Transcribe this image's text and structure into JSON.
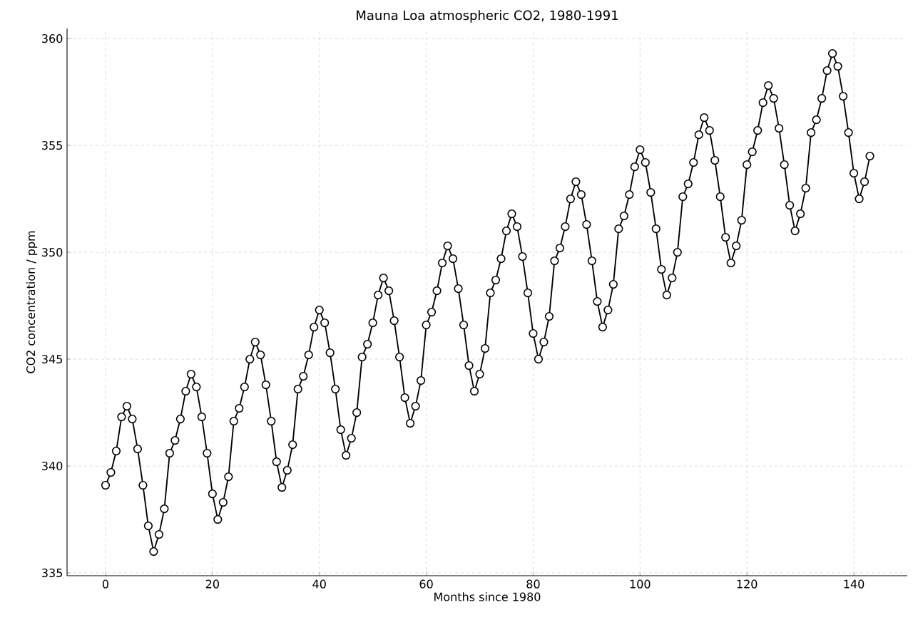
{
  "chart_data": {
    "type": "line",
    "title": "Mauna Loa atmospheric CO2, 1980-1991",
    "xlabel": "Months since 1980",
    "ylabel": "CO2 concentration / ppm",
    "x": [
      0,
      1,
      2,
      3,
      4,
      5,
      6,
      7,
      8,
      9,
      10,
      11,
      12,
      13,
      14,
      15,
      16,
      17,
      18,
      19,
      20,
      21,
      22,
      23,
      24,
      25,
      26,
      27,
      28,
      29,
      30,
      31,
      32,
      33,
      34,
      35,
      36,
      37,
      38,
      39,
      40,
      41,
      42,
      43,
      44,
      45,
      46,
      47,
      48,
      49,
      50,
      51,
      52,
      53,
      54,
      55,
      56,
      57,
      58,
      59,
      60,
      61,
      62,
      63,
      64,
      65,
      66,
      67,
      68,
      69,
      70,
      71,
      72,
      73,
      74,
      75,
      76,
      77,
      78,
      79,
      80,
      81,
      82,
      83,
      84,
      85,
      86,
      87,
      88,
      89,
      90,
      91,
      92,
      93,
      94,
      95,
      96,
      97,
      98,
      99,
      100,
      101,
      102,
      103,
      104,
      105,
      106,
      107,
      108,
      109,
      110,
      111,
      112,
      113,
      114,
      115,
      116,
      117,
      118,
      119,
      120,
      121,
      122,
      123,
      124,
      125,
      126,
      127,
      128,
      129,
      130,
      131,
      132,
      133,
      134,
      135,
      136,
      137,
      138,
      139,
      140,
      141,
      142,
      143
    ],
    "series": [
      {
        "color": "#000000",
        "values": [
          339.1,
          339.7,
          340.7,
          342.3,
          342.8,
          342.2,
          340.8,
          339.1,
          337.2,
          336.0,
          336.8,
          338.0,
          340.6,
          341.2,
          342.2,
          343.5,
          344.3,
          343.7,
          342.3,
          340.6,
          338.7,
          337.5,
          338.3,
          339.5,
          342.1,
          342.7,
          343.7,
          345.0,
          345.8,
          345.2,
          343.8,
          342.1,
          340.2,
          339.0,
          339.8,
          341.0,
          343.6,
          344.2,
          345.2,
          346.5,
          347.3,
          346.7,
          345.3,
          343.6,
          341.7,
          340.5,
          341.3,
          342.5,
          345.1,
          345.7,
          346.7,
          348.0,
          348.8,
          348.2,
          346.8,
          345.1,
          343.2,
          342.0,
          342.8,
          344.0,
          346.6,
          347.2,
          348.2,
          349.5,
          350.3,
          349.7,
          348.3,
          346.6,
          344.7,
          343.5,
          344.3,
          345.5,
          348.1,
          348.7,
          349.7,
          351.0,
          351.8,
          351.2,
          349.8,
          348.1,
          346.2,
          345.0,
          345.8,
          347.0,
          349.6,
          350.2,
          351.2,
          352.5,
          353.3,
          352.7,
          351.3,
          349.6,
          347.7,
          346.5,
          347.3,
          348.5,
          351.1,
          351.7,
          352.7,
          354.0,
          354.8,
          354.2,
          352.8,
          351.1,
          349.2,
          348.0,
          348.8,
          350.0,
          352.6,
          353.2,
          354.2,
          355.5,
          356.3,
          355.7,
          354.3,
          352.6,
          350.7,
          349.5,
          350.3,
          351.5,
          354.1,
          354.7,
          355.7,
          357.0,
          357.8,
          357.2,
          355.8,
          354.1,
          352.2,
          351.0,
          351.8,
          353.0,
          355.6,
          356.2,
          357.2,
          358.5,
          359.3,
          358.7,
          357.3,
          355.6,
          353.7,
          352.5,
          353.3,
          354.5
        ]
      }
    ],
    "xlim": [
      -7.2,
      150
    ],
    "ylim": [
      334.87,
      360.47
    ],
    "xticks": [
      0,
      20,
      40,
      60,
      80,
      100,
      120,
      140
    ],
    "yticks": [
      335,
      340,
      345,
      350,
      355,
      360
    ],
    "grid": true,
    "marker": "circle",
    "line_style": "solid"
  }
}
